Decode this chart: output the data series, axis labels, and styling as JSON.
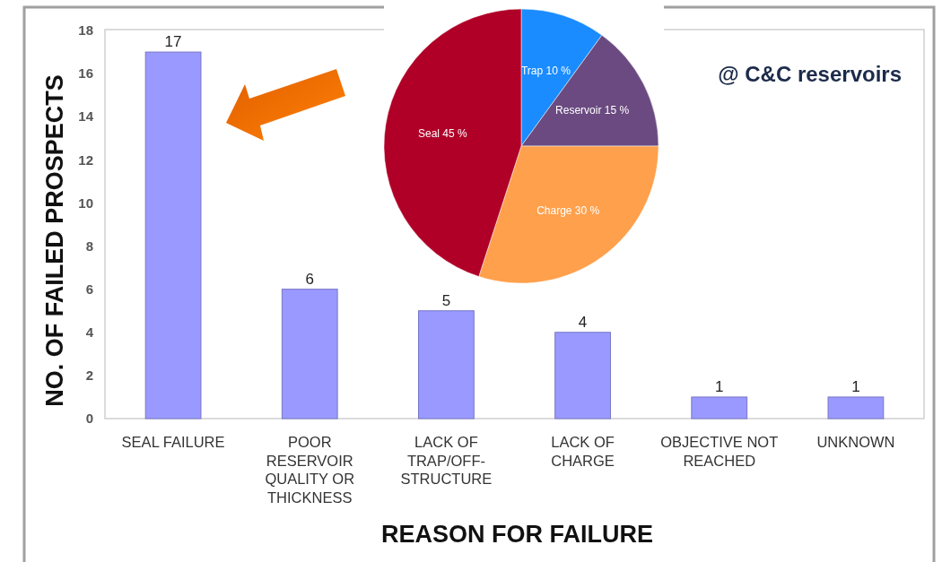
{
  "chart_data": [
    {
      "type": "bar",
      "categories": [
        "SEAL FAILURE",
        "POOR RESERVOIR QUALITY OR THICKNESS",
        "LACK OF TRAP/OFF-STRUCTURE",
        "LACK OF CHARGE",
        "OBJECTIVE NOT REACHED",
        "UNKNOWN"
      ],
      "values": [
        17,
        6,
        5,
        4,
        1,
        1
      ],
      "color": "#9999ff",
      "ylim": [
        0,
        18
      ],
      "yticks": [
        0,
        2,
        4,
        6,
        8,
        10,
        12,
        14,
        16,
        18
      ],
      "xlabel": "REASON FOR FAILURE",
      "ylabel": "NO. OF FAILED PROSPECTS",
      "data_labels": true,
      "annotations": [
        "@ C&C reservoirs"
      ]
    },
    {
      "type": "pie",
      "categories": [
        "Trap",
        "Reservoir",
        "Charge",
        "Seal"
      ],
      "values": [
        10,
        15,
        30,
        45
      ],
      "value_labels": [
        "10 %",
        "15 %",
        "30 %",
        "45 %"
      ],
      "colors": [
        "#1a8cff",
        "#6a4a80",
        "#ffa04c",
        "#b00028"
      ]
    }
  ]
}
